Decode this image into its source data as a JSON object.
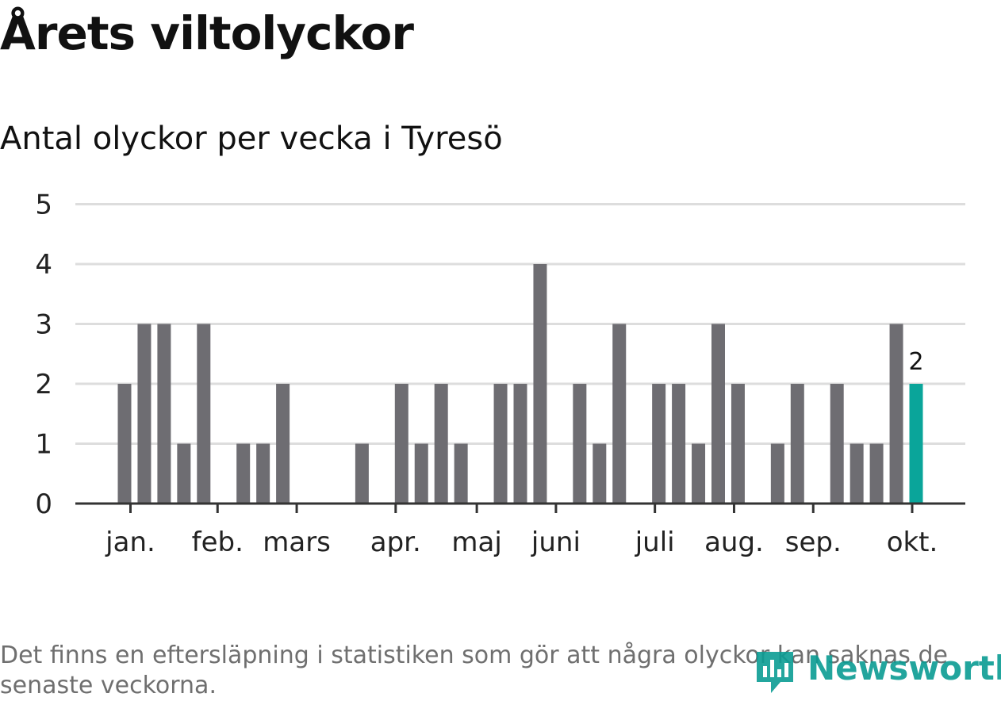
{
  "title": "Årets viltolyckor",
  "subtitle": "Antal olyckor per vecka i Tyresö",
  "footnote": "Det finns en eftersläpning i statistiken som gör att några olyckor kan saknas de senaste veckorna.",
  "logo": {
    "text": "Newsworthy",
    "icon": "newsworthy-logo-icon"
  },
  "colors": {
    "bar": "#6e6d72",
    "highlight": "#0aa59a",
    "grid": "#dddddd",
    "axis": "#333333"
  },
  "chart_data": {
    "type": "bar",
    "weeks": [
      1,
      2,
      3,
      4,
      5,
      6,
      7,
      8,
      9,
      10,
      11,
      12,
      13,
      14,
      15,
      16,
      17,
      18,
      19,
      20,
      21,
      22,
      23,
      24,
      25,
      26,
      27,
      28,
      29,
      30,
      31,
      32,
      33,
      34,
      35,
      36,
      37,
      38,
      39,
      40,
      41
    ],
    "values": [
      2,
      3,
      3,
      1,
      3,
      0,
      1,
      1,
      2,
      0,
      0,
      0,
      1,
      0,
      2,
      1,
      2,
      1,
      0,
      2,
      2,
      4,
      0,
      2,
      1,
      3,
      0,
      2,
      2,
      1,
      3,
      2,
      0,
      1,
      2,
      0,
      2,
      1,
      1,
      3,
      2
    ],
    "highlight_index": 40,
    "highlight_label": "2",
    "ylim": [
      0,
      5
    ],
    "yticks": [
      "0",
      "1",
      "2",
      "3",
      "4",
      "5"
    ],
    "month_ticks": [
      {
        "label": "jan.",
        "week": 1.3
      },
      {
        "label": "feb.",
        "week": 5.7
      },
      {
        "label": "mars",
        "week": 9.7
      },
      {
        "label": "apr.",
        "week": 14.7
      },
      {
        "label": "maj",
        "week": 18.8
      },
      {
        "label": "juni",
        "week": 22.8
      },
      {
        "label": "juli",
        "week": 27.8
      },
      {
        "label": "aug.",
        "week": 31.8
      },
      {
        "label": "sep.",
        "week": 35.8
      },
      {
        "label": "okt.",
        "week": 40.8
      }
    ],
    "grid": true,
    "legend": "none",
    "xlabel": "",
    "ylabel": ""
  }
}
